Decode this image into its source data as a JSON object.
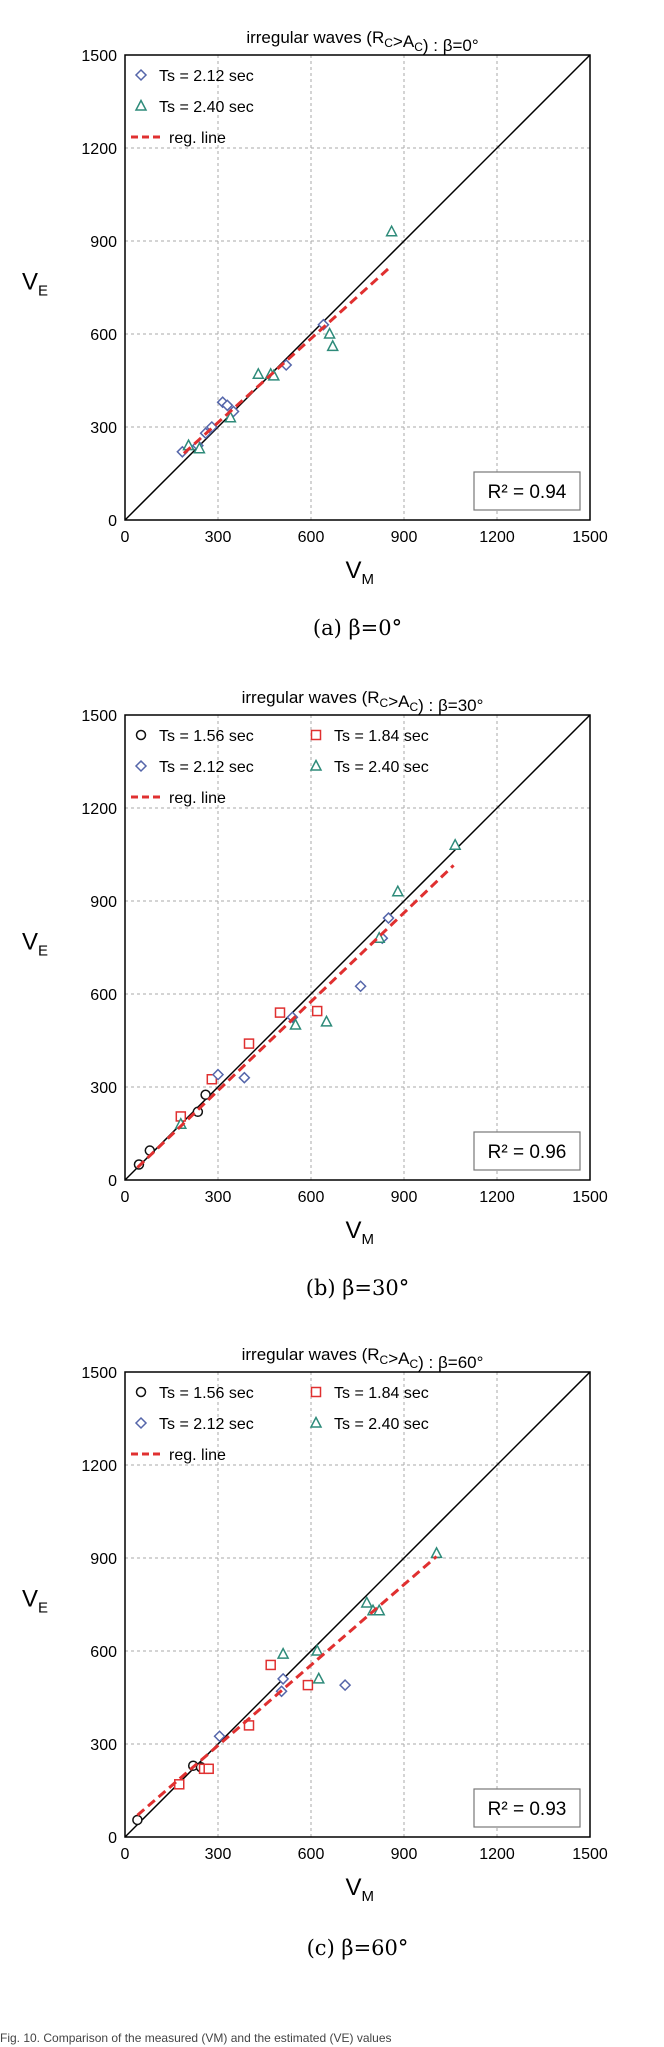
{
  "figure_footer": "Fig. 10. Comparison of the measured (VM) and the estimated (VE) values",
  "chart_data": [
    {
      "type": "scatter",
      "title": "irregular waves (R_C>A_C) : β=0°",
      "caption": "(a)  β=0°",
      "xlabel": "VM",
      "ylabel": "VE",
      "xlim": [
        0,
        1500
      ],
      "ylim": [
        0,
        1500
      ],
      "xticks": [
        0,
        300,
        600,
        900,
        1200,
        1500
      ],
      "yticks": [
        0,
        300,
        600,
        900,
        1200,
        1500
      ],
      "grid": true,
      "legend_position": "top-left",
      "r2_label": "R² = 0.94",
      "series": [
        {
          "name": "Ts = 2.12 sec",
          "marker": "diamond",
          "color": "#5566aa",
          "points": [
            [
              185,
              220
            ],
            [
              235,
              240
            ],
            [
              260,
              280
            ],
            [
              280,
              300
            ],
            [
              315,
              380
            ],
            [
              330,
              370
            ],
            [
              350,
              350
            ],
            [
              520,
              500
            ],
            [
              640,
              630
            ]
          ]
        },
        {
          "name": "Ts = 2.40 sec",
          "marker": "triangle",
          "color": "#2e8b7a",
          "points": [
            [
              205,
              240
            ],
            [
              240,
              230
            ],
            [
              340,
              330
            ],
            [
              430,
              470
            ],
            [
              470,
              470
            ],
            [
              480,
              465
            ],
            [
              660,
              600
            ],
            [
              670,
              560
            ],
            [
              860,
              930
            ]
          ]
        }
      ],
      "reg_line": {
        "name": "reg. line",
        "color": "#e03030",
        "x": [
          190,
          860
        ],
        "y": [
          215,
          820
        ]
      },
      "identity_line": {
        "x": [
          0,
          1500
        ],
        "y": [
          0,
          1500
        ]
      }
    },
    {
      "type": "scatter",
      "title": "irregular waves (R_C>A_C) : β=30°",
      "caption": "(b)  β=30°",
      "xlabel": "VM",
      "ylabel": "VE",
      "xlim": [
        0,
        1500
      ],
      "ylim": [
        0,
        1500
      ],
      "xticks": [
        0,
        300,
        600,
        900,
        1200,
        1500
      ],
      "yticks": [
        0,
        300,
        600,
        900,
        1200,
        1500
      ],
      "grid": true,
      "legend_position": "top-left",
      "r2_label": "R² = 0.96",
      "series": [
        {
          "name": "Ts = 1.56 sec",
          "marker": "circle",
          "color": "#111111",
          "points": [
            [
              45,
              50
            ],
            [
              80,
              95
            ],
            [
              235,
              220
            ],
            [
              260,
              275
            ]
          ]
        },
        {
          "name": "Ts = 1.84 sec",
          "marker": "square",
          "color": "#e03030",
          "points": [
            [
              180,
              205
            ],
            [
              280,
              325
            ],
            [
              400,
              440
            ],
            [
              500,
              540
            ],
            [
              620,
              545
            ]
          ]
        },
        {
          "name": "Ts = 2.12 sec",
          "marker": "diamond",
          "color": "#5566aa",
          "points": [
            [
              300,
              340
            ],
            [
              385,
              330
            ],
            [
              540,
              525
            ],
            [
              760,
              625
            ],
            [
              830,
              780
            ],
            [
              850,
              845
            ]
          ]
        },
        {
          "name": "Ts = 2.40 sec",
          "marker": "triangle",
          "color": "#2e8b7a",
          "points": [
            [
              180,
              180
            ],
            [
              550,
              500
            ],
            [
              650,
              510
            ],
            [
              820,
              780
            ],
            [
              880,
              930
            ],
            [
              1065,
              1080
            ]
          ]
        }
      ],
      "reg_line": {
        "name": "reg. line",
        "color": "#e03030",
        "x": [
          40,
          1060
        ],
        "y": [
          40,
          1015
        ]
      },
      "identity_line": {
        "x": [
          0,
          1500
        ],
        "y": [
          0,
          1500
        ]
      }
    },
    {
      "type": "scatter",
      "title": "irregular waves (R_C>A_C) : β=60°",
      "caption": "(c)  β=60°",
      "xlabel": "VM",
      "ylabel": "VE",
      "xlim": [
        0,
        1500
      ],
      "ylim": [
        0,
        1500
      ],
      "xticks": [
        0,
        300,
        600,
        900,
        1200,
        1500
      ],
      "yticks": [
        0,
        300,
        600,
        900,
        1200,
        1500
      ],
      "grid": true,
      "legend_position": "top-left",
      "r2_label": "R² = 0.93",
      "series": [
        {
          "name": "Ts = 1.56 sec",
          "marker": "circle",
          "color": "#111111",
          "points": [
            [
              40,
              55
            ],
            [
              220,
              230
            ],
            [
              245,
              225
            ]
          ]
        },
        {
          "name": "Ts = 1.84 sec",
          "marker": "square",
          "color": "#e03030",
          "points": [
            [
              175,
              170
            ],
            [
              255,
              220
            ],
            [
              270,
              220
            ],
            [
              400,
              360
            ],
            [
              470,
              555
            ],
            [
              590,
              490
            ]
          ]
        },
        {
          "name": "Ts = 2.12 sec",
          "marker": "diamond",
          "color": "#5566aa",
          "points": [
            [
              305,
              325
            ],
            [
              505,
              470
            ],
            [
              510,
              510
            ],
            [
              710,
              490
            ]
          ]
        },
        {
          "name": "Ts = 2.40 sec",
          "marker": "triangle",
          "color": "#2e8b7a",
          "points": [
            [
              510,
              590
            ],
            [
              620,
              600
            ],
            [
              625,
              510
            ],
            [
              780,
              755
            ],
            [
              800,
              730
            ],
            [
              820,
              730
            ],
            [
              1005,
              915
            ]
          ]
        }
      ],
      "reg_line": {
        "name": "reg. line",
        "color": "#e03030",
        "x": [
          40,
          1005
        ],
        "y": [
          70,
          905
        ]
      },
      "identity_line": {
        "x": [
          0,
          1500
        ],
        "y": [
          0,
          1500
        ]
      }
    }
  ]
}
